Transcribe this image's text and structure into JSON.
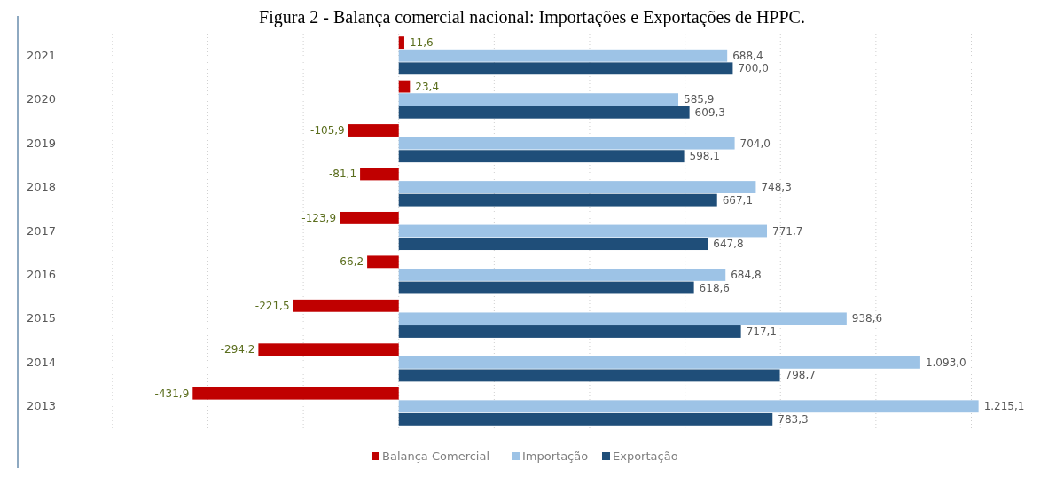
{
  "chart_data": {
    "type": "bar",
    "title": "Figura 2 - Balança comercial nacional: Importações e Exportações de HPPC.",
    "orientation": "horizontal",
    "categories": [
      "2021",
      "2020",
      "2019",
      "2018",
      "2017",
      "2016",
      "2015",
      "2014",
      "2013"
    ],
    "xticks": [
      {
        "value": -600,
        "label": null
      },
      {
        "value": -400,
        "label": null
      },
      {
        "value": -200,
        "label": null
      },
      {
        "value": 0,
        "label": null
      },
      {
        "value": 200,
        "label": null
      },
      {
        "value": 400,
        "label": null
      },
      {
        "value": 600,
        "label": null
      },
      {
        "value": 800,
        "label": null
      },
      {
        "value": 1000,
        "label": null
      },
      {
        "value": 1200,
        "label": null
      }
    ],
    "tick_labels": "y",
    "grid": "x",
    "legend": "bottom",
    "series": [
      {
        "name": "Balança Comercial",
        "color": "#c00000",
        "values": [
          11.6,
          23.4,
          -105.9,
          -81.1,
          -123.9,
          -66.2,
          -221.5,
          -294.2,
          -431.9
        ],
        "value_labels": [
          "11,6",
          "23,4",
          "-105,9",
          "-81,1",
          "-123,9",
          "-66,2",
          "-221,5",
          "-294,2",
          "-431,9"
        ]
      },
      {
        "name": "Importação",
        "color": "#9dc3e6",
        "values": [
          688.4,
          585.9,
          704.0,
          748.3,
          771.7,
          684.8,
          938.6,
          1093.0,
          1215.1
        ],
        "value_labels": [
          "688,4",
          "585,9",
          "704,0",
          "748,3",
          "771,7",
          "684,8",
          "938,6",
          "1.093,0",
          "1.215,1"
        ]
      },
      {
        "name": "Exportação",
        "color": "#1f4e79",
        "values": [
          700.0,
          609.3,
          598.1,
          667.1,
          647.8,
          618.6,
          717.1,
          798.7,
          783.3
        ],
        "value_labels": [
          "700,0",
          "609,3",
          "598,1",
          "667,1",
          "647,8",
          "618,6",
          "717,1",
          "798,7",
          "783,3"
        ]
      }
    ]
  }
}
